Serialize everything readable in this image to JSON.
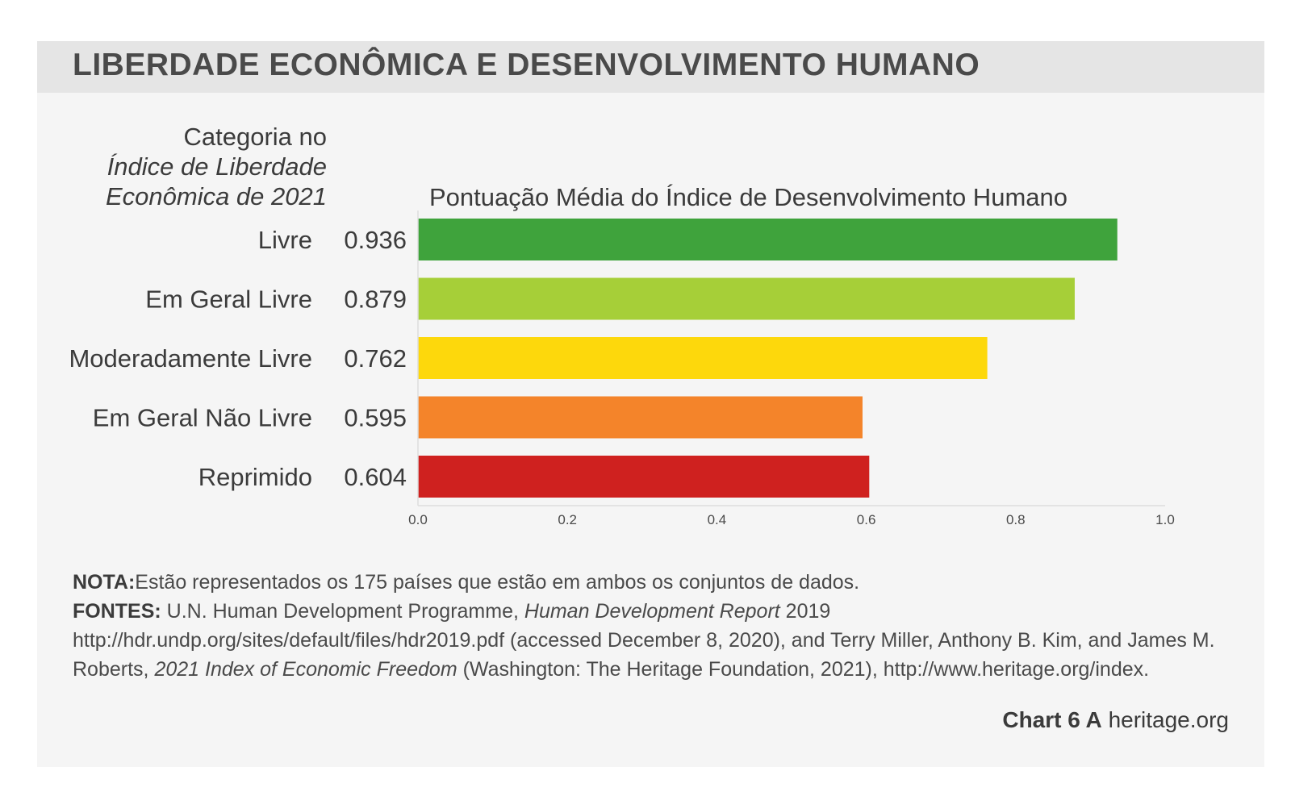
{
  "title": "LIBERDADE ECONÔMICA E DESENVOLVIMENTO HUMANO",
  "category_header": {
    "line1": "Categoria no",
    "line2": "Índice de Liberdade",
    "line3": "Econômica de 2021"
  },
  "chart_data": {
    "type": "bar",
    "orientation": "horizontal",
    "title": "Pontuação Média do Índice de Desenvolvimento Humano",
    "categories": [
      "Livre",
      "Em Geral Livre",
      "Moderadamente Livre",
      "Em Geral Não Livre",
      "Reprimido"
    ],
    "values": [
      0.936,
      0.879,
      0.762,
      0.595,
      0.604
    ],
    "value_labels": [
      "0.936",
      "0.879",
      "0.762",
      "0.595",
      "0.604"
    ],
    "colors": [
      "#3fa33c",
      "#a6cf38",
      "#fdd80c",
      "#f4842a",
      "#cf211f"
    ],
    "xlim": [
      0.0,
      1.0
    ],
    "xticks": [
      "0.0",
      "0.2",
      "0.4",
      "0.6",
      "0.8",
      "1.0"
    ],
    "grid": false,
    "legend": "none"
  },
  "footnote": {
    "nota_label": "NOTA:",
    "nota_text": "Estão representados os 175 países que estão em ambos os conjuntos de dados.",
    "fontes_label": "FONTES:",
    "fontes_part1": " U.N. Human Development Programme, ",
    "fontes_italic1": "Human Development Report",
    "fontes_part2": " 2019 http://hdr.undp.org/sites/default/files/hdr2019.pdf (accessed December 8, 2020), and Terry Miller, Anthony B. Kim, and James M. Roberts, ",
    "fontes_italic2": "2021 Index of Economic Freedom",
    "fontes_part3": " (Washington: The Heritage Foundation, 2021), http://www.heritage.org/index."
  },
  "credit": {
    "chart_label": "Chart 6 A",
    "site": "heritage.org"
  }
}
